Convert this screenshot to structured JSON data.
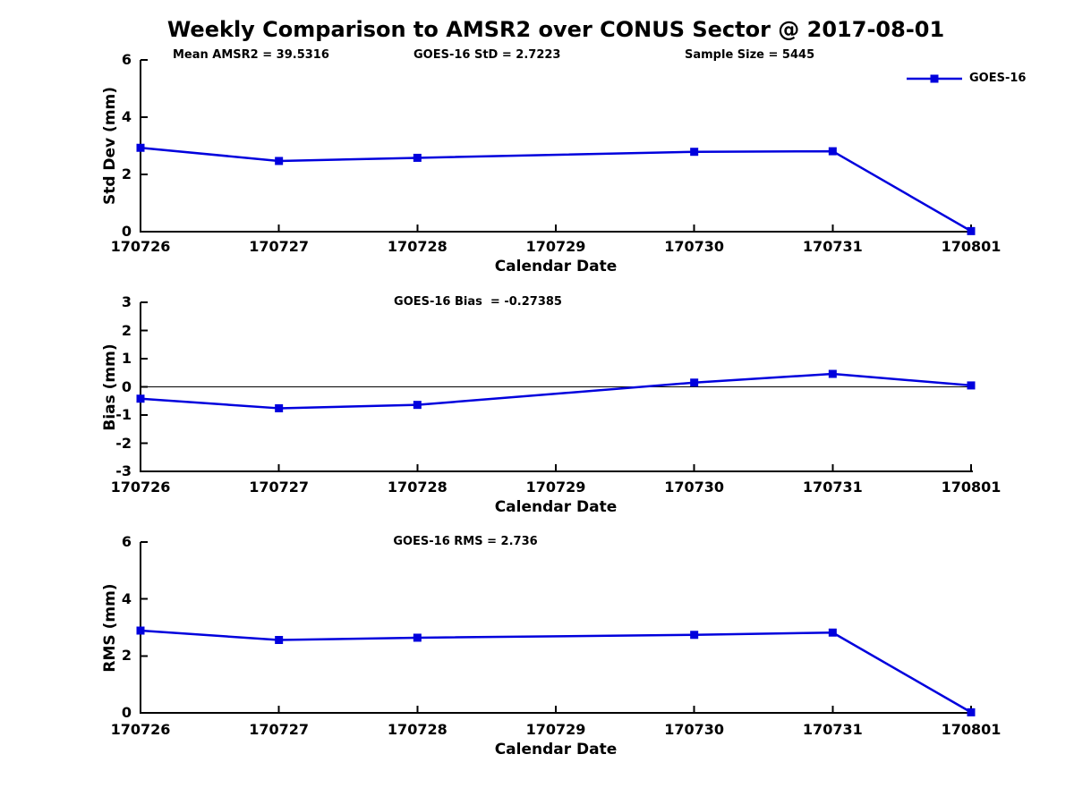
{
  "figure": {
    "title": "Weekly Comparison to AMSR2 over CONUS Sector @ 2017-08-01",
    "annotations": [
      "Mean AMSR2 = 39.5316",
      "GOES-16 StD = 2.7223",
      "Sample Size = 5445"
    ],
    "legend": {
      "series": "GOES-16",
      "location": "upper right",
      "marker": "square"
    }
  },
  "x_tick_labels": [
    "170726",
    "170727",
    "170728",
    "170729",
    "170730",
    "170731",
    "170801"
  ],
  "chart_data": [
    {
      "type": "line",
      "title": "",
      "ylabel": "Std Dev (mm)",
      "xlabel": "Calendar Date",
      "ylim": [
        0,
        6
      ],
      "yticks": [
        0,
        2,
        4,
        6
      ],
      "zero_line": false,
      "grid": false,
      "series": [
        {
          "name": "GOES-16",
          "marker": "square",
          "x": [
            "170726",
            "170727",
            "170728",
            "170730",
            "170731",
            "170801"
          ],
          "y": [
            2.93,
            2.47,
            2.58,
            2.79,
            2.81,
            0.02
          ]
        }
      ]
    },
    {
      "type": "line",
      "title": "GOES-16 Bias  = -0.27385",
      "ylabel": "Bias (mm)",
      "xlabel": "Calendar Date",
      "ylim": [
        -3,
        3
      ],
      "yticks": [
        3,
        2,
        1,
        0,
        -1,
        -2,
        -3
      ],
      "zero_line": true,
      "grid": false,
      "series": [
        {
          "name": "GOES-16",
          "marker": "square",
          "x": [
            "170726",
            "170727",
            "170728",
            "170730",
            "170731",
            "170801"
          ],
          "y": [
            -0.42,
            -0.76,
            -0.64,
            0.15,
            0.46,
            0.05
          ]
        }
      ]
    },
    {
      "type": "line",
      "title": "GOES-16 RMS = 2.736",
      "ylabel": "RMS (mm)",
      "xlabel": "Calendar Date",
      "ylim": [
        0,
        6
      ],
      "yticks": [
        0,
        2,
        4,
        6
      ],
      "zero_line": false,
      "grid": false,
      "series": [
        {
          "name": "GOES-16",
          "marker": "square",
          "x": [
            "170726",
            "170727",
            "170728",
            "170730",
            "170731",
            "170801"
          ],
          "y": [
            2.89,
            2.56,
            2.64,
            2.74,
            2.82,
            0.02
          ]
        }
      ]
    }
  ],
  "colors": {
    "line": "#0000dd",
    "axis": "#000000",
    "text": "#000000",
    "background": "#ffffff"
  }
}
